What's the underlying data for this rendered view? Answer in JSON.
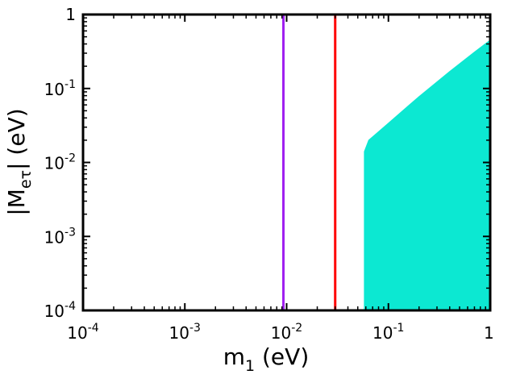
{
  "chart_data": {
    "type": "scatter",
    "title": "",
    "xlabel": "m",
    "xlabel_sub": "1",
    "xlabel_unit": " (eV)",
    "ylabel_open": "|M",
    "ylabel_sub": "eτ",
    "ylabel_close": "| (eV)",
    "x_scale": "log",
    "y_scale": "log",
    "xlim": [
      0.0001,
      1
    ],
    "ylim": [
      0.0001,
      1
    ],
    "x_ticks": [
      {
        "value": 0.0001,
        "base": "10",
        "exp": "-4"
      },
      {
        "value": 0.001,
        "base": "10",
        "exp": "-3"
      },
      {
        "value": 0.01,
        "base": "10",
        "exp": "-2"
      },
      {
        "value": 0.1,
        "base": "10",
        "exp": "-1"
      },
      {
        "value": 1,
        "base": "1",
        "exp": ""
      }
    ],
    "y_ticks": [
      {
        "value": 0.0001,
        "base": "10",
        "exp": "-4"
      },
      {
        "value": 0.001,
        "base": "10",
        "exp": "-3"
      },
      {
        "value": 0.01,
        "base": "10",
        "exp": "-2"
      },
      {
        "value": 0.1,
        "base": "10",
        "exp": "-1"
      },
      {
        "value": 1,
        "base": "1",
        "exp": ""
      }
    ],
    "grid": false,
    "vertical_lines": [
      {
        "x": 0.0093,
        "color": "#a020f0"
      },
      {
        "x": 0.03,
        "color": "#ff0000"
      }
    ],
    "region": {
      "color": "#0ce8d2",
      "boundary": [
        [
          0.058,
          0.0001
        ],
        [
          0.058,
          0.014
        ],
        [
          0.064,
          0.02
        ],
        [
          0.08,
          0.026
        ],
        [
          0.1,
          0.034
        ],
        [
          0.2,
          0.078
        ],
        [
          0.4,
          0.17
        ],
        [
          0.7,
          0.31
        ],
        [
          1,
          0.45
        ],
        [
          1,
          0.0001
        ]
      ]
    }
  }
}
